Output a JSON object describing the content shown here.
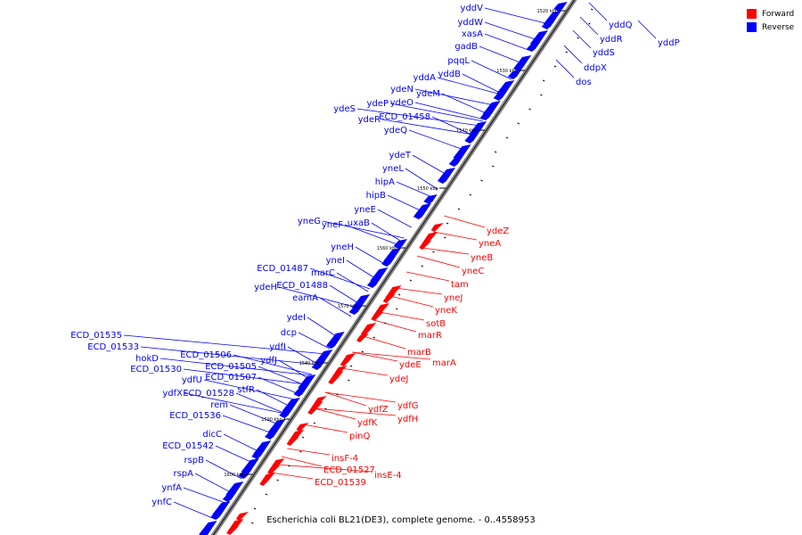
{
  "caption": "Escherichia coli BL21(DE3), complete genome. - 0..4558953",
  "legend": [
    {
      "label": "Forward",
      "color": "#ff0000"
    },
    {
      "label": "Reverse",
      "color": "#0000ff"
    }
  ],
  "kbp_labels": [
    "1520 kbp",
    "1530 kbp",
    "1540 kbp",
    "1550 kbp",
    "1560 kbp",
    "1570 kbp",
    "1580 kbp",
    "1590 kbp",
    "1600 kbp"
  ],
  "reverse_genes": [
    "yddV",
    "yddW",
    "xasA",
    "gadB",
    "pqqL",
    "yddB",
    "yddA",
    "ydeN",
    "ydeM",
    "ydeP",
    "ydeO",
    "ydeS",
    "ydeR",
    "ECD_01458",
    "ydeQ",
    "ydeT",
    "yneL",
    "hipA",
    "hipB",
    "yneE",
    "uxaB",
    "yneG",
    "yneF",
    "yneH",
    "yneI",
    "ECD_01487",
    "marC",
    "ydeH",
    "ECD_01488",
    "eamA",
    "ydeI",
    "dcp",
    "ydfI",
    "ydfJ",
    "ECD_01506",
    "ECD_01505",
    "ECD_01507",
    "ECD_01535",
    "ECD_01533",
    "hokD",
    "ECD_01530",
    "ydfU",
    "stfR",
    "ydfX",
    "ECD_01528",
    "rem",
    "ECD_01536",
    "dicC",
    "ECD_01542",
    "rspB",
    "rspA",
    "ynfA",
    "ynfC"
  ],
  "reverse_genes_right": [
    "yddQ",
    "yddP",
    "yddR",
    "yddS",
    "ddpX",
    "dos"
  ],
  "forward_genes": [
    "ydeZ",
    "yneA",
    "yneB",
    "yneC",
    "tam",
    "yneJ",
    "yneK",
    "sotB",
    "marR",
    "marB",
    "marA",
    "ydeE",
    "ydeJ",
    "ydfG",
    "ydfZ",
    "ydfH",
    "ydfK",
    "pinQ",
    "insF-4",
    "ECD_01527",
    "insE-4",
    "ECD_01539"
  ]
}
